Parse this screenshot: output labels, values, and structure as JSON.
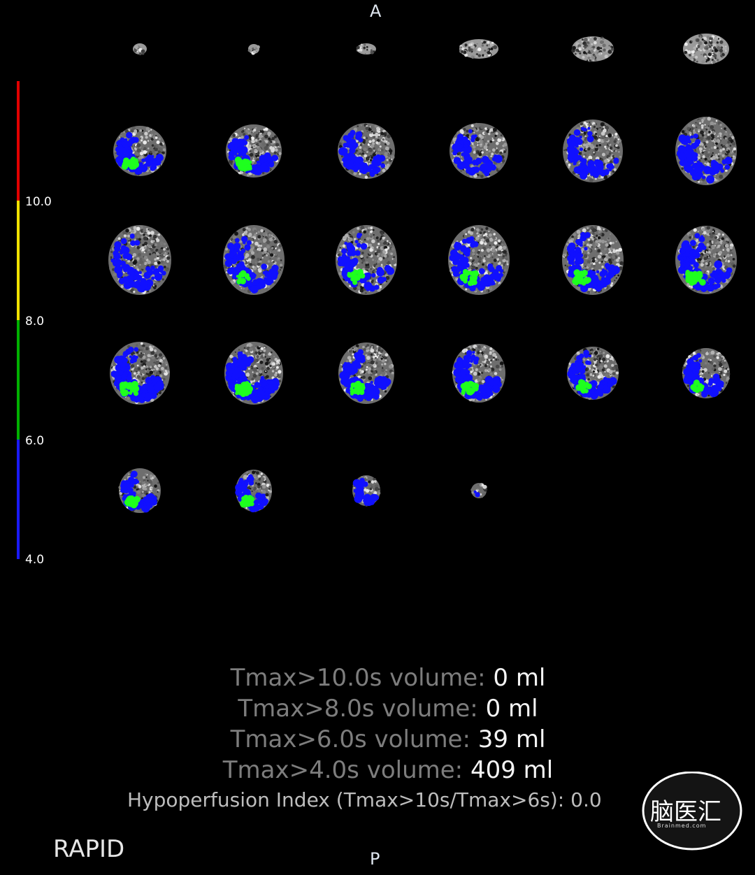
{
  "orientation": {
    "anterior": "A",
    "posterior": "P"
  },
  "colorbar": {
    "ticks": [
      "10.0",
      "8.0",
      "6.0",
      "4.0"
    ],
    "segments": [
      {
        "from": 10.0,
        "to": 12.0,
        "color": "#e00000"
      },
      {
        "from": 8.0,
        "to": 10.0,
        "color": "#f0e000"
      },
      {
        "from": 6.0,
        "to": 8.0,
        "color": "#00b000"
      },
      {
        "from": 4.0,
        "to": 6.0,
        "color": "#1a1aff"
      }
    ]
  },
  "legend_colors": {
    "tmax_gt6": "#1eff1e",
    "tmax_gt4": "#1010ff"
  },
  "results": {
    "line1": {
      "label": "Tmax>10.0s volume:",
      "value": "0 ml"
    },
    "line2": {
      "label": "Tmax>8.0s volume:",
      "value": "0 ml"
    },
    "line3": {
      "label": "Tmax>6.0s volume:",
      "value": "39 ml"
    },
    "line4": {
      "label": "Tmax>4.0s volume:",
      "value": "409 ml"
    },
    "hypoperfusion": "Hypoperfusion Index (Tmax>10s/Tmax>6s): 0.0"
  },
  "brand": "RAPID",
  "watermark": {
    "text": "脑医汇",
    "url": "Brainmed.com"
  }
}
